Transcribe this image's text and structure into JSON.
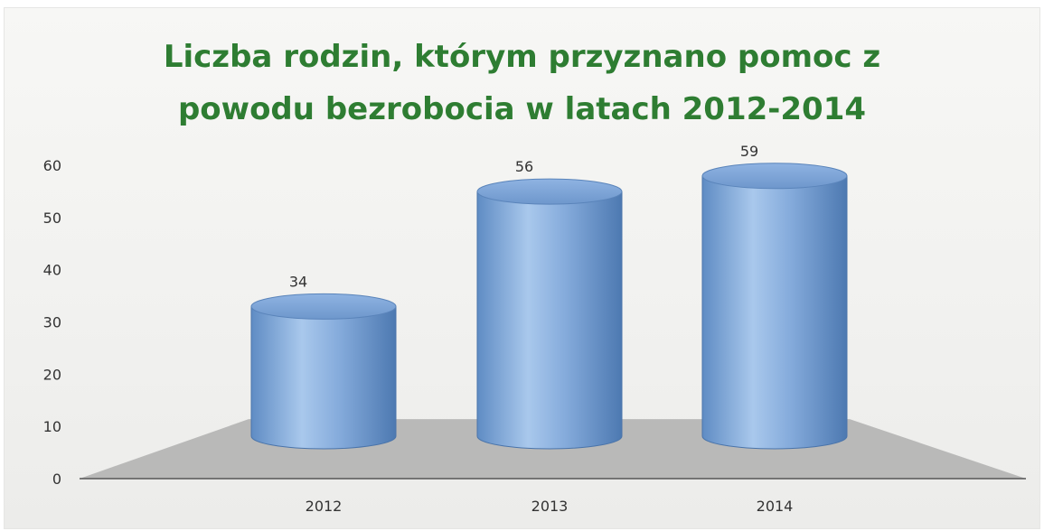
{
  "chart_data": {
    "type": "bar",
    "title_lines": [
      "Liczba rodzin, którym przyznano pomoc z",
      "powodu bezrobocia w latach 2012-2014"
    ],
    "categories": [
      "2012",
      "2013",
      "2014"
    ],
    "values": [
      34,
      56,
      59
    ],
    "ylim": [
      0,
      60
    ],
    "yticks": [
      0,
      10,
      20,
      30,
      40,
      50,
      60
    ],
    "grid": false,
    "bar_shape": "cylinder",
    "colors": {
      "bar": "#7ea6d6",
      "bar_dark": "#4f7fba",
      "floor": "#b3b3b3",
      "title": "#2e7d32"
    }
  }
}
